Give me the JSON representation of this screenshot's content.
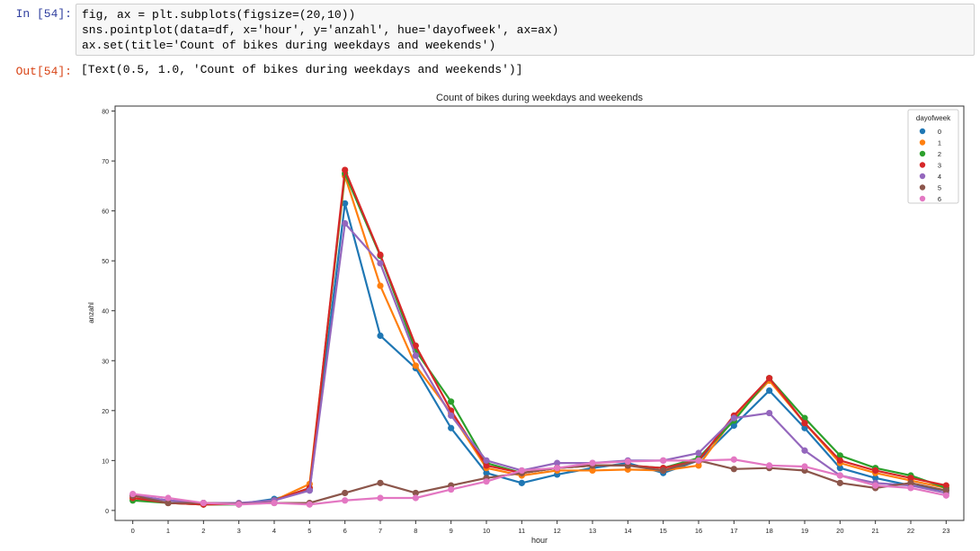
{
  "input_cell": {
    "prompt": "In [54]:",
    "lines": [
      "fig, ax = plt.subplots(figsize=(20,10))",
      "sns.pointplot(data=df, x='hour', y='anzahl', hue='dayofweek', ax=ax)",
      "ax.set(title='Count of bikes during weekdays and weekends')"
    ]
  },
  "output_cell": {
    "prompt": "Out[54]:",
    "text": "[Text(0.5, 1.0, 'Count of bikes during weekdays and weekends')]"
  },
  "chart_data": {
    "type": "line",
    "title": "Count of bikes during weekdays and weekends",
    "xlabel": "hour",
    "ylabel": "anzahl",
    "categories": [
      "0",
      "1",
      "2",
      "3",
      "4",
      "5",
      "6",
      "7",
      "8",
      "9",
      "10",
      "11",
      "12",
      "13",
      "14",
      "15",
      "16",
      "17",
      "18",
      "19",
      "20",
      "21",
      "22",
      "23"
    ],
    "ylim": [
      -2,
      81
    ],
    "yticks": [
      0,
      10,
      20,
      30,
      40,
      50,
      60,
      70,
      80
    ],
    "legend_title": "dayofweek",
    "legend_position": "top-right",
    "grid": false,
    "series": [
      {
        "name": "0",
        "color": "#1f77b4",
        "values": [
          3.0,
          2.0,
          1.5,
          1.3,
          2.3,
          4.0,
          61.5,
          35.0,
          28.5,
          16.5,
          7.5,
          5.5,
          7.2,
          8.5,
          9.5,
          7.5,
          10.0,
          17.0,
          24.0,
          16.5,
          8.5,
          6.5,
          5.0,
          4.0
        ]
      },
      {
        "name": "1",
        "color": "#ff7f0e",
        "values": [
          2.5,
          1.5,
          1.2,
          1.3,
          2.0,
          5.3,
          67.0,
          45.0,
          29.0,
          19.5,
          8.5,
          7.0,
          8.0,
          8.0,
          8.2,
          8.0,
          9.0,
          18.5,
          26.0,
          17.5,
          9.5,
          7.5,
          6.0,
          4.5
        ]
      },
      {
        "name": "2",
        "color": "#2ca02c",
        "values": [
          2.0,
          1.5,
          1.2,
          1.2,
          2.0,
          4.5,
          67.5,
          51.0,
          32.0,
          21.8,
          9.5,
          7.5,
          8.5,
          9.0,
          9.0,
          8.5,
          10.5,
          18.0,
          26.5,
          18.5,
          11.0,
          8.5,
          7.0,
          4.5
        ]
      },
      {
        "name": "3",
        "color": "#d62728",
        "values": [
          2.5,
          1.5,
          1.2,
          1.3,
          2.0,
          4.5,
          68.2,
          51.2,
          33.0,
          20.0,
          9.0,
          7.5,
          8.5,
          9.0,
          9.0,
          8.5,
          10.0,
          19.0,
          26.5,
          17.5,
          10.0,
          8.0,
          6.5,
          5.0
        ]
      },
      {
        "name": "4",
        "color": "#9467bd",
        "values": [
          3.0,
          2.0,
          1.5,
          1.5,
          2.0,
          4.0,
          57.5,
          49.5,
          31.0,
          19.0,
          10.0,
          8.0,
          9.5,
          9.5,
          10.0,
          10.0,
          11.5,
          18.5,
          19.5,
          12.0,
          7.0,
          5.5,
          5.0,
          3.5
        ]
      },
      {
        "name": "5",
        "color": "#8c564b",
        "values": [
          3.0,
          1.5,
          1.5,
          1.3,
          1.5,
          1.5,
          3.5,
          5.5,
          3.5,
          5.0,
          6.5,
          7.5,
          8.5,
          9.0,
          9.0,
          8.0,
          10.0,
          8.3,
          8.5,
          8.0,
          5.5,
          4.5,
          5.5,
          4.0
        ]
      },
      {
        "name": "6",
        "color": "#e377c2",
        "values": [
          3.3,
          2.5,
          1.5,
          1.2,
          1.5,
          1.2,
          2.0,
          2.5,
          2.5,
          4.2,
          5.8,
          8.0,
          8.5,
          9.5,
          9.8,
          10.0,
          10.0,
          10.2,
          9.0,
          8.8,
          7.0,
          5.0,
          4.5,
          3.0
        ]
      }
    ]
  }
}
